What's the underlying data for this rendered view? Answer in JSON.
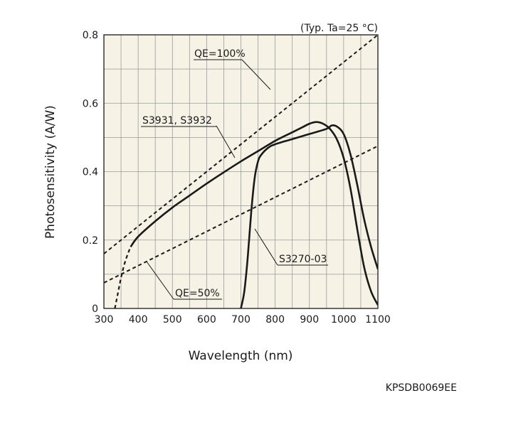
{
  "chart_data": {
    "type": "line",
    "condition": "(Typ. Ta=25 °C)",
    "xlabel": "Wavelength (nm)",
    "ylabel": "Photosensitivity (A/W)",
    "xlim": [
      300,
      1100
    ],
    "ylim": [
      0,
      0.8
    ],
    "grid": true,
    "x_ticks": [
      "300",
      "400",
      "500",
      "600",
      "700",
      "800",
      "900",
      "1000",
      "1100"
    ],
    "y_ticks": [
      "0",
      "0.2",
      "0.4",
      "0.6",
      "0.8"
    ],
    "series": [
      {
        "name": "S3931, S3932",
        "style": "solid",
        "dashed_segment": {
          "x": [
            332,
            340,
            350,
            360,
            370,
            378
          ],
          "y": [
            0,
            0.04,
            0.09,
            0.13,
            0.16,
            0.18
          ]
        },
        "x": [
          378,
          400,
          450,
          500,
          550,
          600,
          650,
          700,
          750,
          800,
          850,
          880,
          900,
          920,
          940,
          960,
          980,
          1000,
          1020,
          1040,
          1060,
          1080,
          1100
        ],
        "y": [
          0.18,
          0.21,
          0.255,
          0.295,
          0.33,
          0.365,
          0.398,
          0.43,
          0.46,
          0.49,
          0.515,
          0.53,
          0.54,
          0.545,
          0.54,
          0.525,
          0.495,
          0.44,
          0.35,
          0.23,
          0.12,
          0.05,
          0.01
        ]
      },
      {
        "name": "S3270-03",
        "style": "solid",
        "x": [
          700,
          710,
          720,
          730,
          740,
          750,
          760,
          780,
          800,
          850,
          900,
          950,
          965,
          980,
          1000,
          1020,
          1040,
          1060,
          1080,
          1100
        ],
        "y": [
          0,
          0.05,
          0.15,
          0.28,
          0.38,
          0.43,
          0.45,
          0.47,
          0.48,
          0.495,
          0.51,
          0.525,
          0.535,
          0.532,
          0.51,
          0.45,
          0.36,
          0.26,
          0.18,
          0.115
        ]
      }
    ],
    "reference_lines": [
      {
        "name": "QE=100%",
        "style": "dashed",
        "x": [
          300,
          1100
        ],
        "y": [
          0.16,
          0.8
        ]
      },
      {
        "name": "QE=50%",
        "style": "dashed",
        "x": [
          300,
          1100
        ],
        "y": [
          0.075,
          0.475
        ]
      }
    ],
    "annotations": [
      {
        "text": "QE=100%",
        "target": "QE=100%"
      },
      {
        "text": "S3931, S3932",
        "target": "S3931, S3932"
      },
      {
        "text": "S3270-03",
        "target": "S3270-03"
      },
      {
        "text": "QE=50%",
        "target": "QE=50%"
      }
    ]
  },
  "document_code": "KPSDB0069EE"
}
